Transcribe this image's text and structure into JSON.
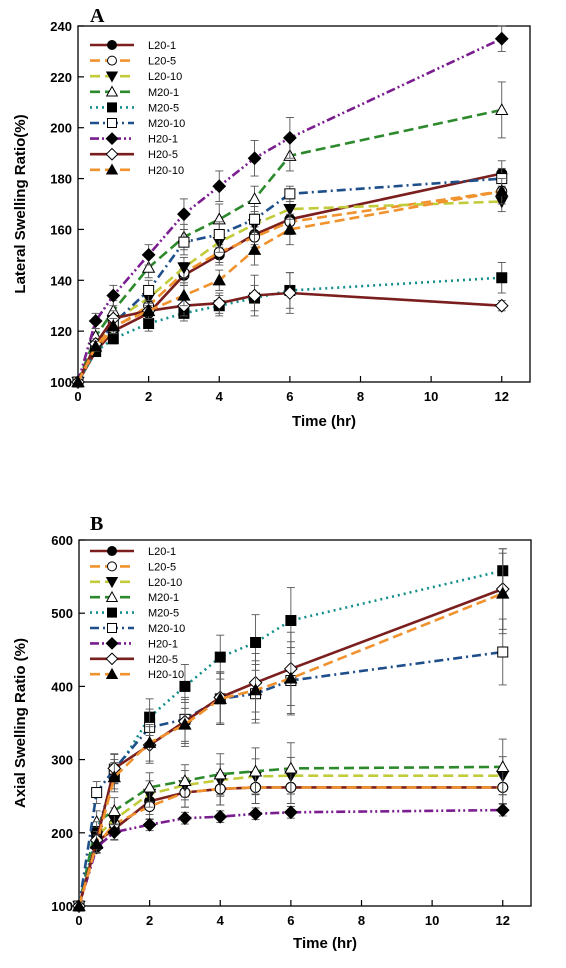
{
  "chart_data": [
    {
      "type": "line",
      "panel_label": "A",
      "title": "",
      "xlabel": "Time (hr)",
      "ylabel": "Lateral Swelling Ratio(%)",
      "xlim": [
        0,
        12.8
      ],
      "ylim": [
        100,
        240
      ],
      "x_ticks": [
        0,
        2,
        4,
        6,
        8,
        10,
        12
      ],
      "y_ticks": [
        100,
        120,
        140,
        160,
        180,
        200,
        220,
        240
      ],
      "legend_position": "top-left",
      "x": [
        0,
        0.5,
        1,
        2,
        3,
        4,
        5,
        6,
        12
      ],
      "series": [
        {
          "name": "L20-1",
          "color": "#7b1e1e",
          "dash": "solid",
          "marker": "circle-filled",
          "values": [
            100,
            112,
            120,
            127,
            142,
            150,
            158,
            164,
            182
          ],
          "errors": [
            0,
            2,
            3,
            3,
            4,
            4,
            4,
            5,
            5
          ]
        },
        {
          "name": "L20-5",
          "color": "#f0922e",
          "dash": "dash",
          "marker": "circle-open",
          "values": [
            100,
            113,
            121,
            130,
            143,
            151,
            157,
            163,
            175
          ],
          "errors": [
            0,
            2,
            3,
            3,
            4,
            4,
            4,
            5,
            4
          ]
        },
        {
          "name": "L20-10",
          "color": "#c2cc3a",
          "dash": "dash",
          "marker": "triangle-down",
          "values": [
            100,
            115,
            124,
            133,
            145,
            155,
            162,
            168,
            171
          ],
          "errors": [
            0,
            2,
            3,
            3,
            4,
            4,
            4,
            4,
            4
          ]
        },
        {
          "name": "M20-1",
          "color": "#2c8a2c",
          "dash": "dash",
          "marker": "triangle-open",
          "values": [
            100,
            118,
            128,
            145,
            157,
            164,
            172,
            189,
            207
          ],
          "errors": [
            0,
            3,
            4,
            4,
            5,
            6,
            5,
            6,
            11
          ]
        },
        {
          "name": "M20-5",
          "color": "#128f8a",
          "dash": "dot",
          "marker": "square-filled",
          "values": [
            100,
            112,
            117,
            123,
            127,
            130,
            133,
            136,
            141
          ],
          "errors": [
            0,
            2,
            2,
            3,
            3,
            4,
            5,
            7,
            6
          ]
        },
        {
          "name": "M20-10",
          "color": "#1f4f8a",
          "dash": "dashdot",
          "marker": "square-open",
          "values": [
            100,
            114,
            123,
            136,
            155,
            158,
            164,
            174,
            180
          ],
          "errors": [
            0,
            2,
            3,
            4,
            5,
            5,
            5,
            3,
            4
          ]
        },
        {
          "name": "H20-1",
          "color": "#7a1d8f",
          "dash": "dashdotdot",
          "marker": "diamond-filled",
          "values": [
            100,
            124,
            134,
            150,
            166,
            177,
            188,
            196,
            235
          ],
          "errors": [
            0,
            3,
            4,
            4,
            6,
            6,
            7,
            8,
            5
          ]
        },
        {
          "name": "H20-5",
          "color": "#7b1e1e",
          "dash": "solid",
          "marker": "diamond-open",
          "values": [
            100,
            115,
            125,
            128,
            130,
            131,
            134,
            135,
            130
          ],
          "errors": [
            0,
            2,
            3,
            3,
            4,
            4,
            8,
            8,
            2
          ]
        },
        {
          "name": "H20-10",
          "color": "#f0922e",
          "dash": "dash",
          "marker": "triangle-filled",
          "values": [
            100,
            114,
            122,
            128,
            134,
            140,
            152,
            160,
            175
          ],
          "errors": [
            0,
            2,
            3,
            3,
            4,
            4,
            6,
            6,
            5
          ]
        }
      ]
    },
    {
      "type": "line",
      "panel_label": "B",
      "title": "",
      "xlabel": "Time (hr)",
      "ylabel": "Axial Swelling Ratio (%)",
      "xlim": [
        0,
        12.8
      ],
      "ylim": [
        100,
        600
      ],
      "x_ticks": [
        0,
        2,
        4,
        6,
        8,
        10,
        12
      ],
      "y_ticks": [
        100,
        200,
        300,
        400,
        500,
        600
      ],
      "legend_position": "top-left",
      "x": [
        0,
        0.5,
        1,
        2,
        3,
        4,
        5,
        6,
        12
      ],
      "series": [
        {
          "name": "L20-1",
          "color": "#7b1e1e",
          "dash": "solid",
          "marker": "circle-filled",
          "values": [
            100,
            188,
            205,
            243,
            255,
            260,
            262,
            262,
            262
          ],
          "errors": [
            0,
            10,
            15,
            18,
            20,
            22,
            22,
            22,
            22
          ]
        },
        {
          "name": "L20-5",
          "color": "#f0922e",
          "dash": "dash",
          "marker": "circle-open",
          "values": [
            100,
            183,
            212,
            236,
            255,
            260,
            262,
            262,
            262
          ],
          "errors": [
            0,
            10,
            15,
            18,
            20,
            22,
            22,
            22,
            22
          ]
        },
        {
          "name": "L20-10",
          "color": "#c2cc3a",
          "dash": "dash",
          "marker": "triangle-down",
          "values": [
            100,
            195,
            218,
            253,
            265,
            272,
            277,
            278,
            278
          ],
          "errors": [
            0,
            12,
            16,
            18,
            20,
            22,
            24,
            25,
            26
          ]
        },
        {
          "name": "M20-1",
          "color": "#2c8a2c",
          "dash": "dash",
          "marker": "triangle-open",
          "values": [
            100,
            215,
            230,
            262,
            271,
            280,
            284,
            288,
            290
          ],
          "errors": [
            0,
            15,
            18,
            20,
            22,
            28,
            32,
            35,
            38
          ]
        },
        {
          "name": "M20-5",
          "color": "#128f8a",
          "dash": "dot",
          "marker": "square-filled",
          "values": [
            100,
            200,
            280,
            358,
            400,
            440,
            460,
            490,
            558
          ],
          "errors": [
            0,
            15,
            20,
            25,
            30,
            30,
            38,
            45,
            30
          ]
        },
        {
          "name": "M20-10",
          "color": "#1f4f8a",
          "dash": "dashdot",
          "marker": "square-open",
          "values": [
            100,
            255,
            287,
            344,
            355,
            383,
            390,
            408,
            447
          ],
          "errors": [
            0,
            15,
            20,
            25,
            30,
            35,
            40,
            45,
            45
          ]
        },
        {
          "name": "H20-1",
          "color": "#7a1d8f",
          "dash": "dashdotdot",
          "marker": "diamond-filled",
          "values": [
            100,
            180,
            201,
            211,
            220,
            222,
            226,
            228,
            231
          ],
          "errors": [
            0,
            8,
            10,
            8,
            8,
            8,
            8,
            8,
            8
          ]
        },
        {
          "name": "H20-5",
          "color": "#7b1e1e",
          "dash": "solid",
          "marker": "diamond-open",
          "values": [
            100,
            190,
            288,
            320,
            352,
            385,
            405,
            424,
            533
          ],
          "errors": [
            0,
            12,
            20,
            25,
            30,
            35,
            40,
            50,
            55
          ]
        },
        {
          "name": "H20-10",
          "color": "#f0922e",
          "dash": "dash",
          "marker": "triangle-filled",
          "values": [
            100,
            185,
            276,
            323,
            348,
            383,
            395,
            411,
            527
          ],
          "errors": [
            0,
            12,
            20,
            25,
            30,
            35,
            40,
            50,
            55
          ]
        }
      ]
    }
  ]
}
